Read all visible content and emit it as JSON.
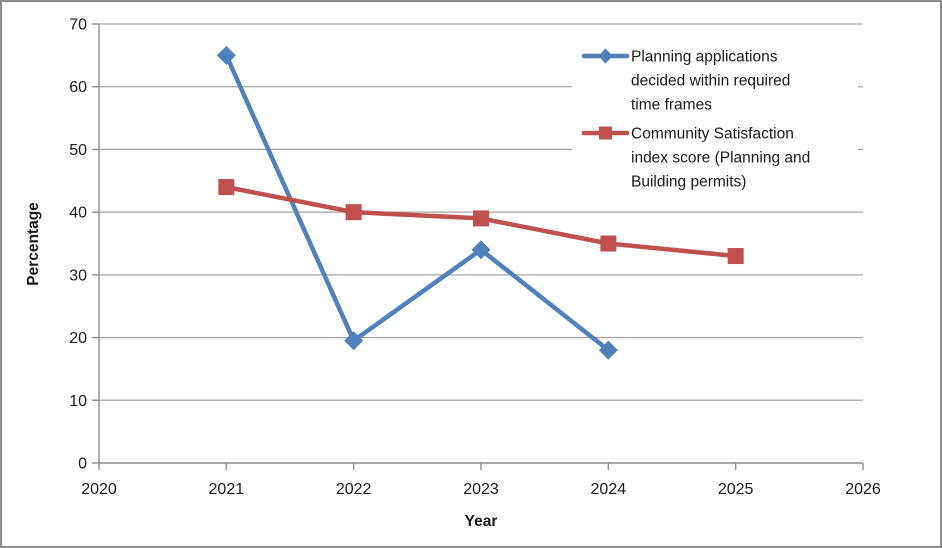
{
  "chart_data": {
    "type": "line",
    "title": "",
    "xlabel": "Year",
    "ylabel": "Percentage",
    "xlim": [
      2020,
      2026
    ],
    "ylim": [
      0,
      70
    ],
    "x_ticks": [
      2020,
      2021,
      2022,
      2023,
      2024,
      2025,
      2026
    ],
    "y_ticks": [
      0,
      10,
      20,
      30,
      40,
      50,
      60,
      70
    ],
    "grid": "horizontal",
    "legend_position": "inside-top-right",
    "series": [
      {
        "name": "Planning applications decided within required time frames",
        "legend_lines": [
          "Planning applications",
          "decided within required",
          "time frames"
        ],
        "color": "#4F81BD",
        "marker": "diamond",
        "x": [
          2021,
          2022,
          2023,
          2024
        ],
        "values": [
          65,
          19.5,
          34,
          18
        ]
      },
      {
        "name": "Community Satisfaction index score (Planning and Building permits)",
        "legend_lines": [
          "Community Satisfaction",
          "index score (Planning and",
          "Building permits)"
        ],
        "color": "#C0504D",
        "marker": "square",
        "x": [
          2021,
          2022,
          2023,
          2024,
          2025
        ],
        "values": [
          44,
          40,
          39,
          35,
          33
        ]
      }
    ],
    "colors": {
      "gridline": "#A6A6A6",
      "axis": "#8C8C8C",
      "text": "#1a1a1a",
      "frame_border": "#8C8C8C",
      "background": "#FFFFFF",
      "legend_background": "#FFFFFF"
    }
  }
}
